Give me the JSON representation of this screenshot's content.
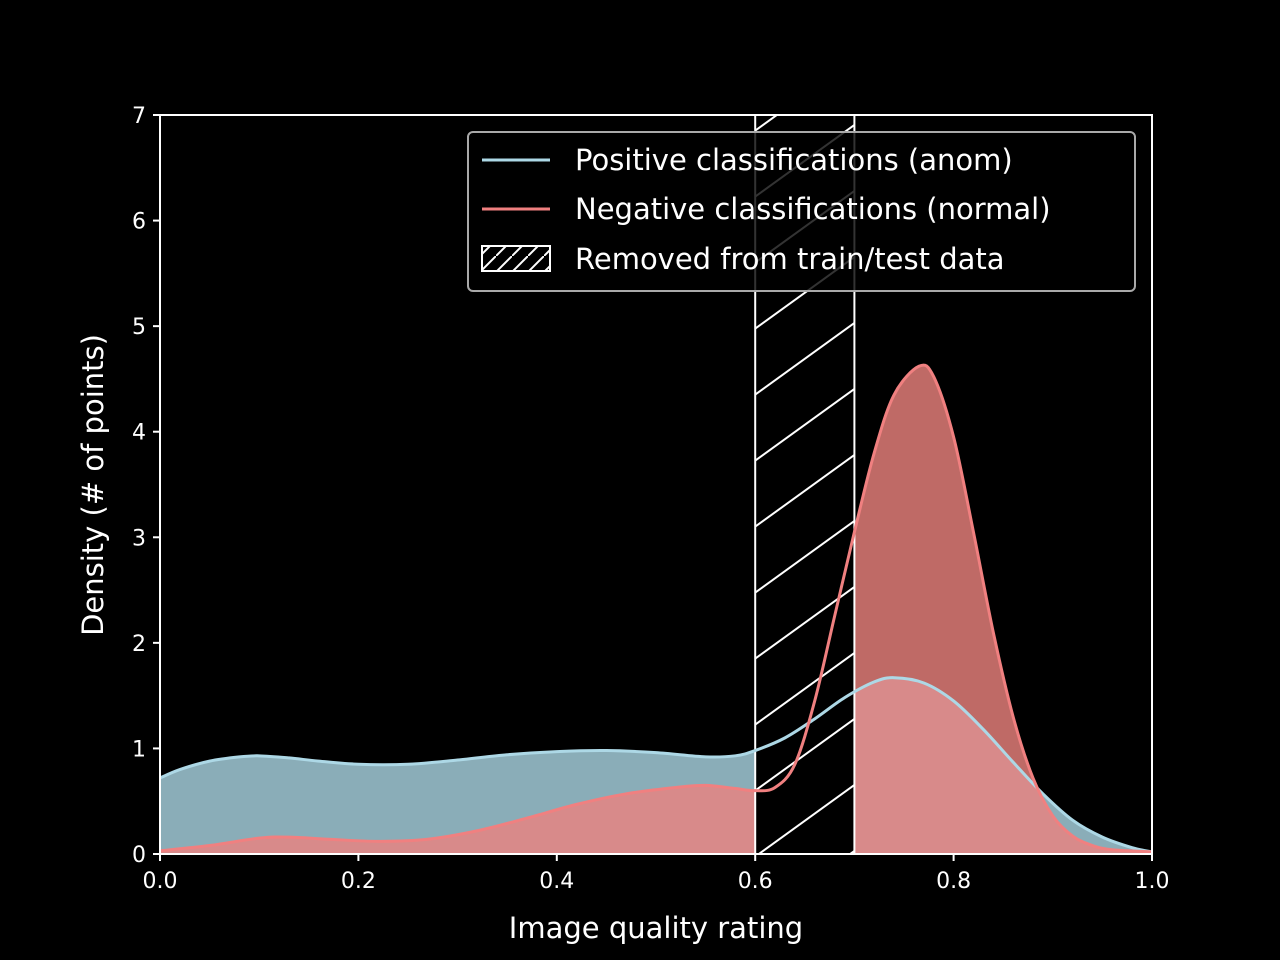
{
  "chart_data": {
    "type": "area",
    "title": "",
    "xlabel": "Image quality rating",
    "ylabel": "Density (# of points)",
    "xlim": [
      0.0,
      1.0
    ],
    "ylim": [
      0,
      7
    ],
    "x_ticks": [
      "0.0",
      "0.2",
      "0.4",
      "0.6",
      "0.8",
      "1.0"
    ],
    "y_ticks": [
      "0",
      "1",
      "2",
      "3",
      "4",
      "5",
      "6",
      "7"
    ],
    "grid": false,
    "legend_position": "top-right",
    "series": [
      {
        "name": "Positive classifications (anom)",
        "line_color": "#add8e6",
        "fill_color": "#8aadb8",
        "points": [
          [
            0.0,
            0.72
          ],
          [
            0.02,
            0.8
          ],
          [
            0.05,
            0.88
          ],
          [
            0.08,
            0.92
          ],
          [
            0.1,
            0.93
          ],
          [
            0.13,
            0.91
          ],
          [
            0.16,
            0.88
          ],
          [
            0.2,
            0.85
          ],
          [
            0.25,
            0.85
          ],
          [
            0.3,
            0.89
          ],
          [
            0.35,
            0.94
          ],
          [
            0.4,
            0.97
          ],
          [
            0.45,
            0.98
          ],
          [
            0.5,
            0.96
          ],
          [
            0.55,
            0.92
          ],
          [
            0.58,
            0.93
          ],
          [
            0.6,
            0.98
          ],
          [
            0.63,
            1.1
          ],
          [
            0.66,
            1.28
          ],
          [
            0.69,
            1.48
          ],
          [
            0.72,
            1.63
          ],
          [
            0.74,
            1.67
          ],
          [
            0.77,
            1.62
          ],
          [
            0.8,
            1.45
          ],
          [
            0.83,
            1.18
          ],
          [
            0.86,
            0.87
          ],
          [
            0.89,
            0.57
          ],
          [
            0.92,
            0.32
          ],
          [
            0.95,
            0.16
          ],
          [
            0.98,
            0.06
          ],
          [
            1.0,
            0.02
          ]
        ]
      },
      {
        "name": "Negative classifications (normal)",
        "line_color": "#f08080",
        "fill_color": "#bf6a66",
        "points": [
          [
            0.0,
            0.03
          ],
          [
            0.05,
            0.08
          ],
          [
            0.1,
            0.15
          ],
          [
            0.13,
            0.16
          ],
          [
            0.17,
            0.14
          ],
          [
            0.22,
            0.12
          ],
          [
            0.27,
            0.14
          ],
          [
            0.32,
            0.22
          ],
          [
            0.37,
            0.34
          ],
          [
            0.42,
            0.47
          ],
          [
            0.47,
            0.57
          ],
          [
            0.52,
            0.63
          ],
          [
            0.55,
            0.65
          ],
          [
            0.58,
            0.62
          ],
          [
            0.6,
            0.6
          ],
          [
            0.62,
            0.63
          ],
          [
            0.64,
            0.85
          ],
          [
            0.66,
            1.45
          ],
          [
            0.68,
            2.25
          ],
          [
            0.7,
            3.05
          ],
          [
            0.72,
            3.8
          ],
          [
            0.74,
            4.35
          ],
          [
            0.765,
            4.62
          ],
          [
            0.78,
            4.52
          ],
          [
            0.8,
            3.95
          ],
          [
            0.82,
            3.05
          ],
          [
            0.84,
            2.1
          ],
          [
            0.86,
            1.3
          ],
          [
            0.88,
            0.72
          ],
          [
            0.9,
            0.36
          ],
          [
            0.92,
            0.17
          ],
          [
            0.94,
            0.08
          ],
          [
            0.96,
            0.04
          ],
          [
            1.0,
            0.02
          ]
        ]
      }
    ],
    "removed_region": {
      "name": "Removed from train/test data",
      "x_range": [
        0.6,
        0.7
      ]
    },
    "overlap_fill_color": "#d88a8a"
  }
}
